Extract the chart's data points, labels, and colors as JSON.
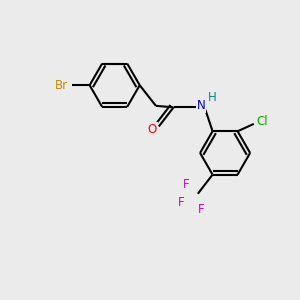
{
  "background_color": "#ebebeb",
  "bond_color": "#000000",
  "bond_width": 1.5,
  "figsize": [
    3.0,
    3.0
  ],
  "dpi": 100,
  "atoms": {
    "Br": {
      "color": "#cc8800",
      "fontsize": 8.5
    },
    "O": {
      "color": "#ff0000",
      "fontsize": 8.5
    },
    "N": {
      "color": "#0000cc",
      "fontsize": 8.5
    },
    "H": {
      "color": "#008888",
      "fontsize": 8.5
    },
    "Cl": {
      "color": "#00aa00",
      "fontsize": 8.5
    },
    "F": {
      "color": "#cc00cc",
      "fontsize": 8.5
    }
  }
}
